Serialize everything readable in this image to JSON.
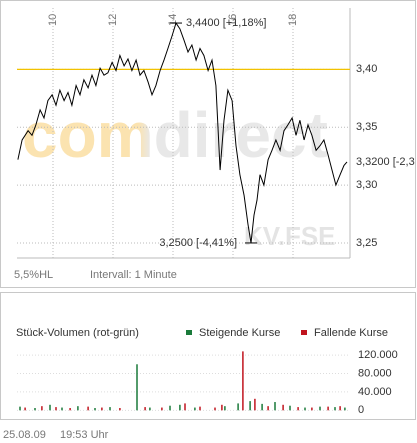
{
  "chart_data": [
    {
      "type": "line",
      "xlim": [
        8.8,
        19.9
      ],
      "xticks": [
        10,
        12,
        14,
        16,
        18
      ],
      "ylim": [
        3.237,
        3.453
      ],
      "yticks": [
        {
          "value": 3.25,
          "label": "3,25"
        },
        {
          "value": 3.3,
          "label": "3,30"
        },
        {
          "value": 3.35,
          "label": "3,35"
        },
        {
          "value": 3.4,
          "label": "3,40"
        }
      ],
      "grid": true,
      "reference_line": {
        "value": 3.4,
        "color": "#f2c200"
      },
      "x": [
        8.83,
        8.97,
        9.17,
        9.3,
        9.43,
        9.57,
        9.7,
        9.83,
        9.97,
        10.1,
        10.23,
        10.37,
        10.5,
        10.63,
        10.77,
        10.9,
        11.03,
        11.17,
        11.3,
        11.43,
        11.57,
        11.7,
        11.83,
        11.97,
        12.1,
        12.23,
        12.37,
        12.5,
        12.63,
        12.77,
        12.9,
        13.03,
        13.17,
        13.3,
        13.43,
        13.57,
        13.7,
        13.83,
        13.97,
        14.1,
        14.23,
        14.37,
        14.5,
        14.63,
        14.77,
        14.9,
        15.03,
        15.17,
        15.3,
        15.43,
        15.57,
        15.7,
        15.83,
        15.97,
        16.1,
        16.23,
        16.37,
        16.5,
        16.6,
        16.7,
        16.8,
        16.9,
        17.03,
        17.17,
        17.3,
        17.43,
        17.57,
        17.7,
        17.83,
        17.97,
        18.1,
        18.23,
        18.37,
        18.5,
        18.63,
        18.77,
        18.9,
        19.03,
        19.17,
        19.3,
        19.43,
        19.57,
        19.7,
        19.8
      ],
      "series": [
        {
          "color": "#000000",
          "values": [
            3.322,
            3.339,
            3.347,
            3.343,
            3.352,
            3.365,
            3.358,
            3.373,
            3.378,
            3.369,
            3.382,
            3.373,
            3.38,
            3.369,
            3.386,
            3.378,
            3.391,
            3.384,
            3.395,
            3.386,
            3.401,
            3.395,
            3.397,
            3.406,
            3.399,
            3.412,
            3.403,
            3.409,
            3.399,
            3.408,
            3.395,
            3.399,
            3.389,
            3.378,
            3.386,
            3.399,
            3.408,
            3.418,
            3.429,
            3.44,
            3.435,
            3.425,
            3.415,
            3.421,
            3.408,
            3.418,
            3.412,
            3.399,
            3.408,
            3.386,
            3.313,
            3.356,
            3.382,
            3.373,
            3.334,
            3.309,
            3.291,
            3.266,
            3.25,
            3.274,
            3.287,
            3.309,
            3.3,
            3.322,
            3.33,
            3.339,
            3.33,
            3.347,
            3.352,
            3.358,
            3.343,
            3.356,
            3.339,
            3.352,
            3.343,
            3.33,
            3.334,
            3.339,
            3.326,
            3.313,
            3.3,
            3.309,
            3.317,
            3.32
          ]
        }
      ],
      "annotations": [
        {
          "text": "3,4400 [+1,18%]",
          "x": 14.1,
          "y": 3.44
        },
        {
          "text": "3,2500 [-4,41%]",
          "x": 16.6,
          "y": 3.25
        },
        {
          "text": "3,3200 [-2,3",
          "x": 19.8,
          "y": 3.32
        }
      ],
      "watermark": "comdirect",
      "source": "KV.FSE",
      "notes": [
        "5,5%HL",
        "Intervall: 1 Minute"
      ]
    },
    {
      "type": "bar",
      "title": "Stück-Volumen (rot-grün)",
      "xlim": [
        8.8,
        19.9
      ],
      "ylim": [
        -8000,
        131000
      ],
      "yticks": [
        0,
        {
          "value": 40000,
          "label": "40.000"
        },
        {
          "value": 80000,
          "label": "80.000"
        },
        {
          "value": 120000,
          "label": "120.000"
        }
      ],
      "series": [
        {
          "name": "Steigende Kurse",
          "color": "#1a7a3a",
          "x": [
            8.9,
            9.4,
            9.9,
            10.3,
            10.83,
            11.4,
            11.9,
            12.8,
            13.23,
            13.9,
            14.23,
            14.73,
            15.73,
            16.17,
            16.57,
            16.97,
            17.4,
            17.9,
            18.4,
            18.9,
            19.4,
            19.73
          ],
          "values": [
            8000,
            5000,
            12000,
            6000,
            9000,
            5000,
            7000,
            100000,
            6000,
            10000,
            12000,
            6000,
            9000,
            15000,
            20000,
            14000,
            18000,
            10000,
            6000,
            8000,
            7000,
            6000
          ]
        },
        {
          "name": "Fallende Kurse",
          "color": "#c0141e",
          "x": [
            9.07,
            9.63,
            10.1,
            10.57,
            11.17,
            11.63,
            12.23,
            13.07,
            13.63,
            14.4,
            14.9,
            15.4,
            15.63,
            16.33,
            16.73,
            17.17,
            17.67,
            18.17,
            18.63,
            19.17,
            19.57
          ],
          "values": [
            6000,
            9000,
            7000,
            5000,
            8000,
            6000,
            5000,
            7000,
            6000,
            15000,
            8000,
            6000,
            12000,
            128000,
            25000,
            9000,
            12000,
            7000,
            6000,
            8000,
            9000
          ]
        }
      ]
    }
  ],
  "footer": {
    "date": "25.08.09",
    "time": "19:53 Uhr"
  }
}
